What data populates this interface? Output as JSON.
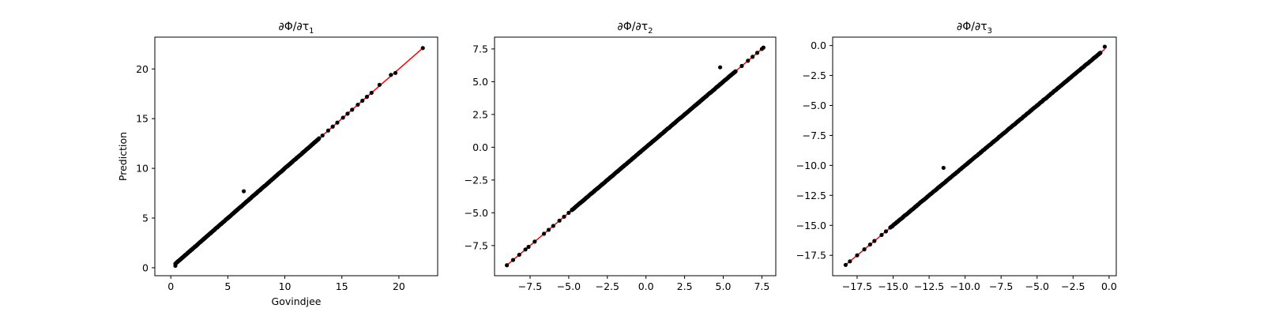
{
  "figure": {
    "background": "#ffffff",
    "point_color": "#000000",
    "line_color": "#ff0000"
  },
  "chart_data": [
    {
      "type": "scatter",
      "title": "∂Φ/∂τ",
      "title_subscript": "1",
      "xlabel": "Govindjee",
      "ylabel": "Prediction",
      "xlim": [
        -1.4,
        23.4
      ],
      "ylim": [
        -0.8,
        23.2
      ],
      "xticks": [
        0,
        5,
        10,
        15,
        20
      ],
      "xtick_labels": [
        "0",
        "5",
        "10",
        "15",
        "20"
      ],
      "yticks": [
        0,
        5,
        10,
        15,
        20
      ],
      "ytick_labels": [
        "0",
        "5",
        "10",
        "15",
        "20"
      ],
      "reference_line": {
        "x": [
          0.4,
          22.1
        ],
        "y": [
          0.4,
          22.1
        ],
        "color": "#ff0000"
      },
      "dense_range": [
        0.4,
        13.0
      ],
      "points": [
        [
          0.4,
          0.2
        ],
        [
          6.4,
          7.7
        ],
        [
          13.3,
          13.3
        ],
        [
          13.8,
          13.8
        ],
        [
          14.2,
          14.2
        ],
        [
          14.6,
          14.6
        ],
        [
          15.1,
          15.1
        ],
        [
          15.5,
          15.5
        ],
        [
          15.9,
          15.9
        ],
        [
          16.4,
          16.4
        ],
        [
          16.8,
          16.8
        ],
        [
          17.2,
          17.2
        ],
        [
          17.6,
          17.6
        ],
        [
          18.3,
          18.4
        ],
        [
          19.3,
          19.4
        ],
        [
          19.7,
          19.6
        ],
        [
          22.1,
          22.1
        ]
      ]
    },
    {
      "type": "scatter",
      "title": "∂Φ/∂τ",
      "title_subscript": "2",
      "xlabel": "",
      "ylabel": "",
      "xlim": [
        -9.8,
        8.4
      ],
      "ylim": [
        -9.8,
        8.4
      ],
      "xticks": [
        -7.5,
        -5.0,
        -2.5,
        0.0,
        2.5,
        5.0,
        7.5
      ],
      "xtick_labels": [
        "−7.5",
        "−5.0",
        "−2.5",
        "0.0",
        "2.5",
        "5.0",
        "7.5"
      ],
      "yticks": [
        -7.5,
        -5.0,
        -2.5,
        0.0,
        2.5,
        5.0,
        7.5
      ],
      "ytick_labels": [
        "−7.5",
        "−5.0",
        "−2.5",
        "0.0",
        "2.5",
        "5.0",
        "7.5"
      ],
      "reference_line": {
        "x": [
          -9.0,
          7.6
        ],
        "y": [
          -9.0,
          7.6
        ],
        "color": "#ff0000"
      },
      "dense_range": [
        -4.8,
        5.8
      ],
      "points": [
        [
          -9.0,
          -9.0
        ],
        [
          -8.6,
          -8.6
        ],
        [
          -8.2,
          -8.2
        ],
        [
          -7.8,
          -7.8
        ],
        [
          -7.6,
          -7.6
        ],
        [
          -7.2,
          -7.2
        ],
        [
          -6.6,
          -6.6
        ],
        [
          -6.3,
          -6.3
        ],
        [
          -6.0,
          -6.0
        ],
        [
          -5.6,
          -5.6
        ],
        [
          -5.3,
          -5.3
        ],
        [
          -5.0,
          -5.0
        ],
        [
          4.8,
          6.1
        ],
        [
          6.2,
          6.2
        ],
        [
          6.6,
          6.6
        ],
        [
          6.9,
          6.9
        ],
        [
          7.2,
          7.2
        ],
        [
          7.5,
          7.5
        ],
        [
          7.6,
          7.6
        ]
      ]
    },
    {
      "type": "scatter",
      "title": "∂Φ/∂τ",
      "title_subscript": "3",
      "xlabel": "",
      "ylabel": "",
      "xlim": [
        -19.2,
        0.5
      ],
      "ylim": [
        -19.2,
        0.7
      ],
      "xticks": [
        -17.5,
        -15.0,
        -12.5,
        -10.0,
        -7.5,
        -5.0,
        -2.5,
        0.0
      ],
      "xtick_labels": [
        "−17.5",
        "−15.0",
        "−12.5",
        "−10.0",
        "−7.5",
        "−5.0",
        "−2.5",
        "0.0"
      ],
      "yticks": [
        -17.5,
        -15.0,
        -12.5,
        -10.0,
        -7.5,
        -5.0,
        -2.5,
        0.0
      ],
      "ytick_labels": [
        "−17.5",
        "−15.0",
        "−12.5",
        "−10.0",
        "−7.5",
        "−5.0",
        "−2.5",
        "0.0"
      ],
      "reference_line": {
        "x": [
          -18.3,
          -0.3
        ],
        "y": [
          -18.3,
          -0.3
        ],
        "color": "#ff0000"
      },
      "dense_range": [
        -15.2,
        -0.6
      ],
      "points": [
        [
          -18.3,
          -18.3
        ],
        [
          -18.0,
          -18.0
        ],
        [
          -17.5,
          -17.5
        ],
        [
          -17.0,
          -17.0
        ],
        [
          -16.6,
          -16.6
        ],
        [
          -16.3,
          -16.3
        ],
        [
          -15.8,
          -15.8
        ],
        [
          -15.5,
          -15.5
        ],
        [
          -11.5,
          -10.2
        ],
        [
          -0.3,
          -0.1
        ]
      ]
    }
  ]
}
